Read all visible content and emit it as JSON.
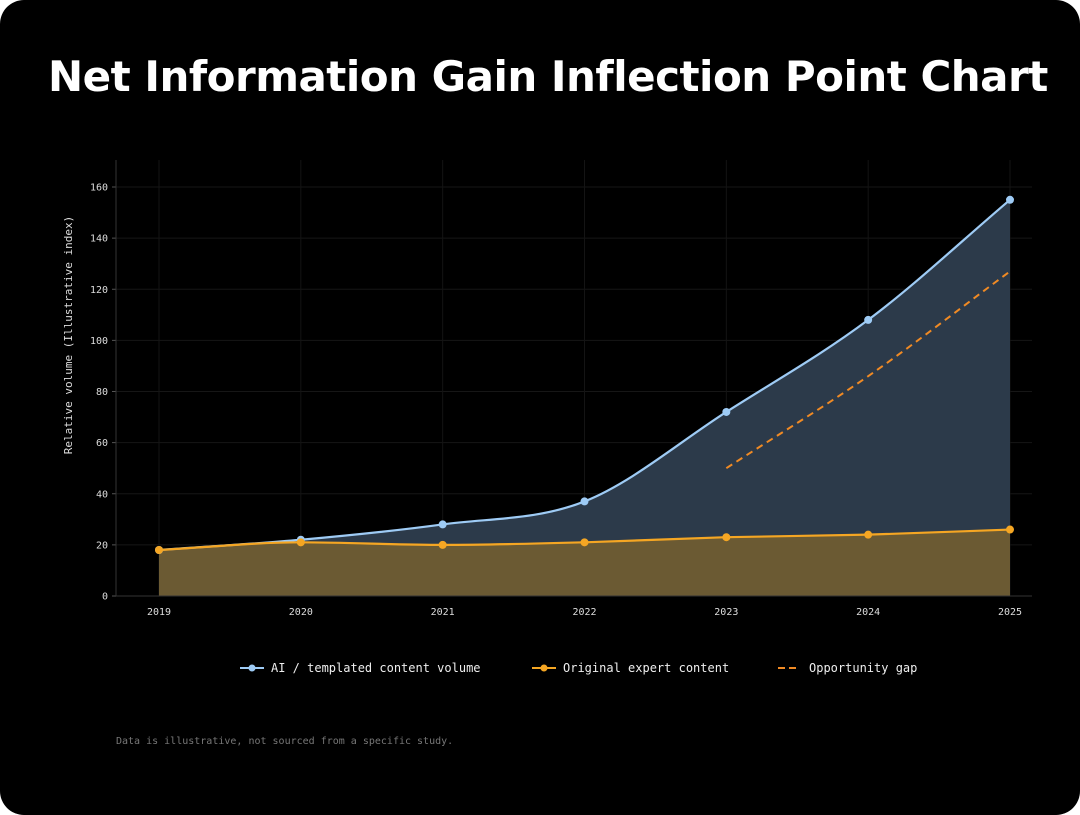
{
  "title": "Net Information Gain Inflection Point Chart",
  "footnote": "Data is illustrative, not sourced from a specific study.",
  "chart_data": {
    "type": "area",
    "title": "Net Information Gain Inflection Point Chart",
    "xlabel": "",
    "ylabel": "Relative volume (Illustrative index)",
    "categories": [
      "2019",
      "2020",
      "2021",
      "2022",
      "2023",
      "2024",
      "2025"
    ],
    "yticks": [
      "0",
      "20",
      "40",
      "60",
      "80",
      "100",
      "120",
      "140",
      "160"
    ],
    "ylim": [
      0,
      170
    ],
    "grid": true,
    "legend_position": "bottom",
    "series": [
      {
        "name": "AI / templated content volume",
        "values": [
          18,
          22,
          28,
          37,
          72,
          108,
          155
        ],
        "color": "#9ecbf5",
        "fill": "#2c3a4a",
        "style": "solid-markers"
      },
      {
        "name": "Original expert content",
        "values": [
          18,
          21,
          20,
          21,
          23,
          24,
          26
        ],
        "color": "#f5a623",
        "fill": "#6b5a33",
        "style": "solid-markers"
      },
      {
        "name": "Opportunity gap",
        "values": [
          null,
          null,
          null,
          null,
          50,
          86,
          127
        ],
        "color": "#f08a24",
        "style": "dashed"
      }
    ]
  }
}
